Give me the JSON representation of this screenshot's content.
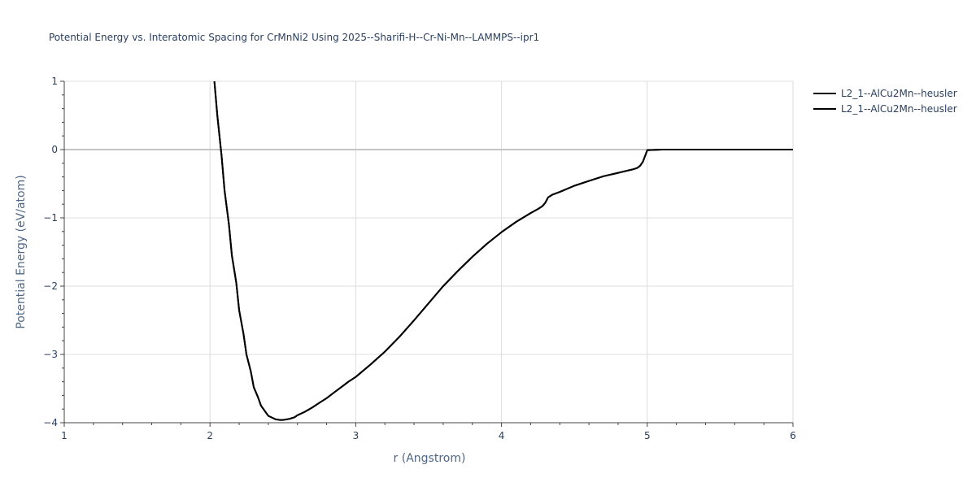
{
  "chart_data": {
    "type": "line",
    "title": "Potential Energy vs. Interatomic Spacing for CrMnNi2 Using 2025--Sharifi-H--Cr-Ni-Mn--LAMMPS--ipr1",
    "xlabel": "r (Angstrom)",
    "ylabel": "Potential Energy (eV/atom)",
    "xlim": [
      1,
      6
    ],
    "ylim": [
      -4,
      1
    ],
    "x_ticks": [
      1,
      2,
      3,
      4,
      5,
      6
    ],
    "x_tick_labels": [
      "1",
      "2",
      "3",
      "4",
      "5",
      "6"
    ],
    "y_ticks": [
      -4,
      -3,
      -2,
      -1,
      0,
      1
    ],
    "y_tick_labels": [
      "−4",
      "−3",
      "−2",
      "−1",
      "0",
      "1"
    ],
    "grid": true,
    "legend_position": "top-right",
    "line_color": "#000000",
    "series": [
      {
        "name": "L2_1--AlCu2Mn--heusler",
        "x": [
          2.03,
          2.05,
          2.08,
          2.1,
          2.13,
          2.15,
          2.18,
          2.2,
          2.23,
          2.25,
          2.28,
          2.3,
          2.33,
          2.35,
          2.38,
          2.4,
          2.43,
          2.45,
          2.48,
          2.5,
          2.53,
          2.55,
          2.58,
          2.6,
          2.65,
          2.7,
          2.75,
          2.8,
          2.85,
          2.9,
          2.95,
          3.0,
          3.1,
          3.2,
          3.3,
          3.4,
          3.5,
          3.6,
          3.7,
          3.8,
          3.9,
          4.0,
          4.1,
          4.2,
          4.25,
          4.28,
          4.3,
          4.32,
          4.35,
          4.4,
          4.5,
          4.6,
          4.7,
          4.8,
          4.9,
          4.93,
          4.95,
          4.97,
          5.0,
          5.1,
          5.5,
          6.0
        ],
        "y": [
          1.0,
          0.5,
          -0.1,
          -0.6,
          -1.1,
          -1.55,
          -1.95,
          -2.35,
          -2.7,
          -3.0,
          -3.25,
          -3.48,
          -3.63,
          -3.75,
          -3.84,
          -3.9,
          -3.93,
          -3.95,
          -3.96,
          -3.96,
          -3.95,
          -3.94,
          -3.92,
          -3.89,
          -3.84,
          -3.78,
          -3.71,
          -3.64,
          -3.56,
          -3.48,
          -3.4,
          -3.33,
          -3.15,
          -2.96,
          -2.74,
          -2.5,
          -2.25,
          -2.0,
          -1.78,
          -1.57,
          -1.38,
          -1.21,
          -1.06,
          -0.93,
          -0.87,
          -0.83,
          -0.78,
          -0.7,
          -0.66,
          -0.62,
          -0.53,
          -0.46,
          -0.39,
          -0.34,
          -0.29,
          -0.27,
          -0.24,
          -0.18,
          -0.01,
          0.0,
          0.0,
          0.0
        ]
      },
      {
        "name": "L2_1--AlCu2Mn--heusler",
        "x": [
          2.03,
          2.05,
          2.08,
          2.1,
          2.13,
          2.15,
          2.18,
          2.2,
          2.23,
          2.25,
          2.28,
          2.3,
          2.33,
          2.35,
          2.38,
          2.4,
          2.43,
          2.45,
          2.48,
          2.5,
          2.53,
          2.55,
          2.58,
          2.6,
          2.65,
          2.7,
          2.75,
          2.8,
          2.85,
          2.9,
          2.95,
          3.0,
          3.1,
          3.2,
          3.3,
          3.4,
          3.5,
          3.6,
          3.7,
          3.8,
          3.9,
          4.0,
          4.1,
          4.2,
          4.25,
          4.28,
          4.3,
          4.32,
          4.35,
          4.4,
          4.5,
          4.6,
          4.7,
          4.8,
          4.9,
          4.93,
          4.95,
          4.97,
          5.0,
          5.1,
          5.5,
          6.0
        ],
        "y": [
          1.0,
          0.5,
          -0.1,
          -0.6,
          -1.1,
          -1.55,
          -1.95,
          -2.35,
          -2.7,
          -3.0,
          -3.25,
          -3.48,
          -3.63,
          -3.75,
          -3.84,
          -3.9,
          -3.93,
          -3.95,
          -3.96,
          -3.96,
          -3.95,
          -3.94,
          -3.92,
          -3.89,
          -3.84,
          -3.78,
          -3.71,
          -3.64,
          -3.56,
          -3.48,
          -3.4,
          -3.33,
          -3.15,
          -2.96,
          -2.74,
          -2.5,
          -2.25,
          -2.0,
          -1.78,
          -1.57,
          -1.38,
          -1.21,
          -1.06,
          -0.93,
          -0.87,
          -0.83,
          -0.78,
          -0.7,
          -0.66,
          -0.62,
          -0.53,
          -0.46,
          -0.39,
          -0.34,
          -0.29,
          -0.27,
          -0.24,
          -0.18,
          -0.01,
          0.0,
          0.0,
          0.0
        ]
      }
    ]
  }
}
